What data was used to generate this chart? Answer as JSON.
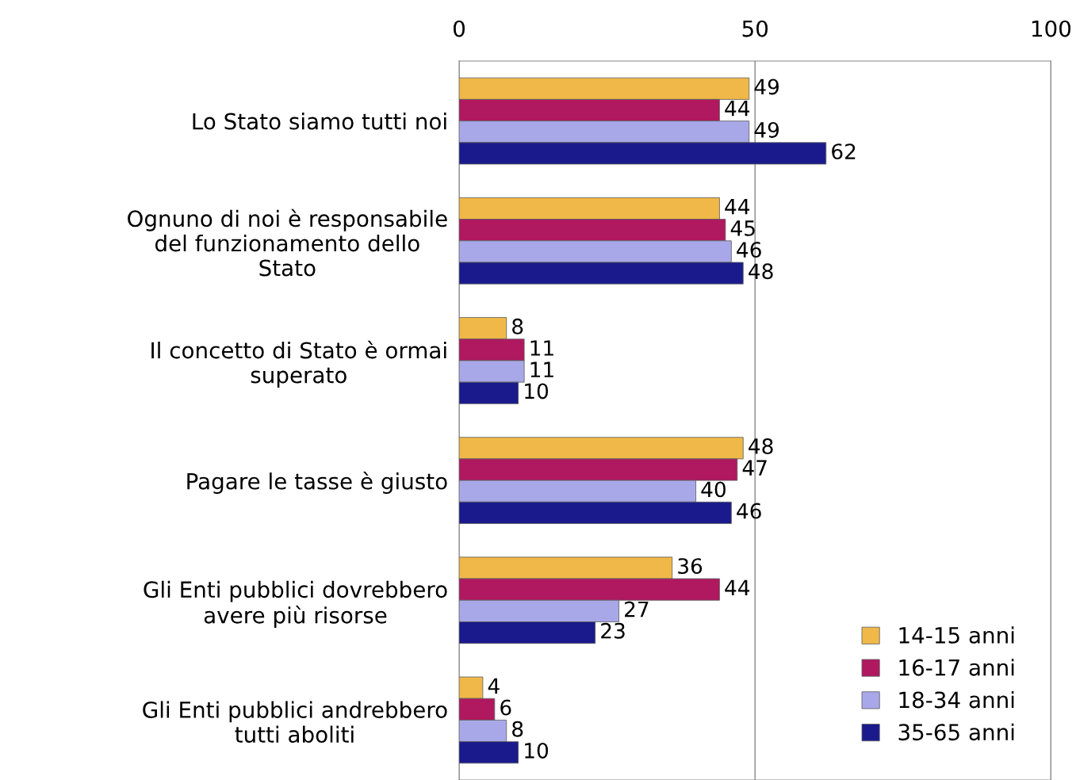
{
  "chart_data": {
    "type": "bar",
    "orientation": "horizontal",
    "categories": [
      "Lo Stato siamo tutti noi",
      "Ognuno di noi è responsabile\ndel funzionamento dello\nStato",
      "Il concetto di Stato è ormai\nsuperato",
      "Pagare le tasse è giusto",
      "Gli Enti pubblici dovrebbero\navere più risorse",
      "Gli Enti pubblici andrebbero\ntutti aboliti"
    ],
    "series": [
      {
        "name": "14-15 anni",
        "color": "#f0b848",
        "values": [
          49,
          44,
          8,
          48,
          36,
          4
        ]
      },
      {
        "name": "16-17 anni",
        "color": "#b01860",
        "values": [
          44,
          45,
          11,
          47,
          44,
          6
        ]
      },
      {
        "name": "18-34 anni",
        "color": "#a8a8e8",
        "values": [
          49,
          46,
          11,
          40,
          27,
          8
        ]
      },
      {
        "name": "35-65 anni",
        "color": "#1a1a8c",
        "values": [
          62,
          48,
          10,
          46,
          23,
          10
        ]
      }
    ],
    "xlim": [
      0,
      100
    ],
    "xticks": [
      0,
      50,
      100
    ],
    "grid": "x",
    "legend": "bottom right",
    "data_labels": true
  }
}
